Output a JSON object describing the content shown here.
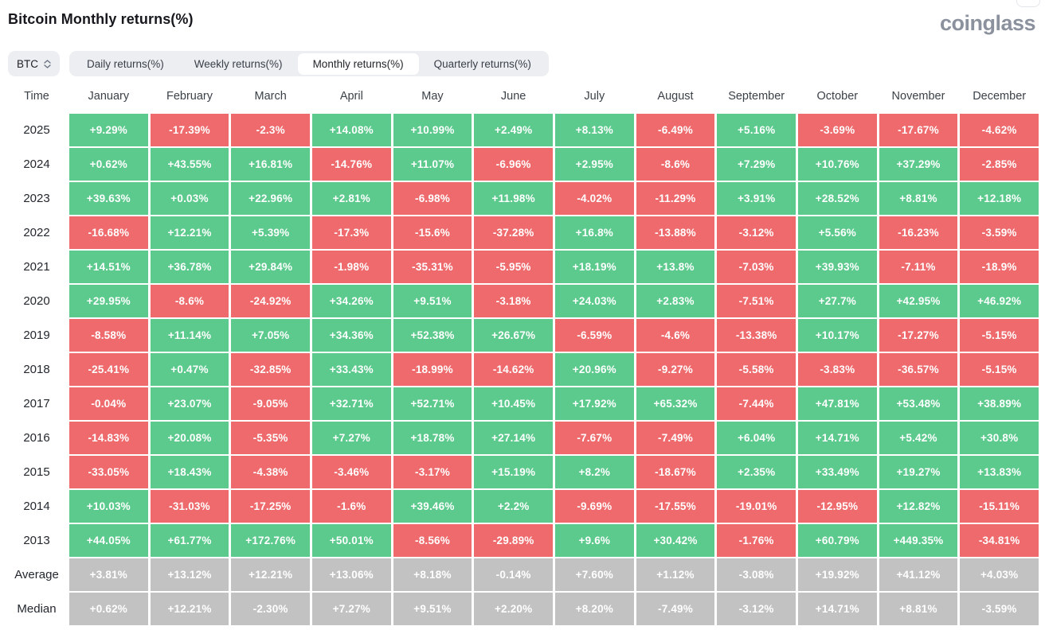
{
  "header": {
    "title": "Bitcoin Monthly returns(%)",
    "logo": "coinglass"
  },
  "toolbar": {
    "symbol": "BTC",
    "tabs": [
      {
        "label": "Daily returns(%)",
        "active": false
      },
      {
        "label": "Weekly returns(%)",
        "active": false
      },
      {
        "label": "Monthly returns(%)",
        "active": true
      },
      {
        "label": "Quarterly returns(%)",
        "active": false
      }
    ]
  },
  "colors": {
    "positive": "#5bca8c",
    "negative": "#ef6a6c",
    "neutral": "#c2c2c2"
  },
  "chart_data": {
    "type": "heatmap",
    "title": "Bitcoin Monthly returns(%)",
    "columns": [
      "Time",
      "January",
      "February",
      "March",
      "April",
      "May",
      "June",
      "July",
      "August",
      "September",
      "October",
      "November",
      "December"
    ],
    "rows": [
      {
        "label": "2025",
        "kind": "year",
        "values": [
          "+9.29%",
          "-17.39%",
          "-2.3%",
          "+14.08%",
          "+10.99%",
          "+2.49%",
          "+8.13%",
          "-6.49%",
          "+5.16%",
          "-3.69%",
          "-17.67%",
          "-4.62%"
        ]
      },
      {
        "label": "2024",
        "kind": "year",
        "values": [
          "+0.62%",
          "+43.55%",
          "+16.81%",
          "-14.76%",
          "+11.07%",
          "-6.96%",
          "+2.95%",
          "-8.6%",
          "+7.29%",
          "+10.76%",
          "+37.29%",
          "-2.85%"
        ]
      },
      {
        "label": "2023",
        "kind": "year",
        "values": [
          "+39.63%",
          "+0.03%",
          "+22.96%",
          "+2.81%",
          "-6.98%",
          "+11.98%",
          "-4.02%",
          "-11.29%",
          "+3.91%",
          "+28.52%",
          "+8.81%",
          "+12.18%"
        ]
      },
      {
        "label": "2022",
        "kind": "year",
        "values": [
          "-16.68%",
          "+12.21%",
          "+5.39%",
          "-17.3%",
          "-15.6%",
          "-37.28%",
          "+16.8%",
          "-13.88%",
          "-3.12%",
          "+5.56%",
          "-16.23%",
          "-3.59%"
        ]
      },
      {
        "label": "2021",
        "kind": "year",
        "values": [
          "+14.51%",
          "+36.78%",
          "+29.84%",
          "-1.98%",
          "-35.31%",
          "-5.95%",
          "+18.19%",
          "+13.8%",
          "-7.03%",
          "+39.93%",
          "-7.11%",
          "-18.9%"
        ]
      },
      {
        "label": "2020",
        "kind": "year",
        "values": [
          "+29.95%",
          "-8.6%",
          "-24.92%",
          "+34.26%",
          "+9.51%",
          "-3.18%",
          "+24.03%",
          "+2.83%",
          "-7.51%",
          "+27.7%",
          "+42.95%",
          "+46.92%"
        ]
      },
      {
        "label": "2019",
        "kind": "year",
        "values": [
          "-8.58%",
          "+11.14%",
          "+7.05%",
          "+34.36%",
          "+52.38%",
          "+26.67%",
          "-6.59%",
          "-4.6%",
          "-13.38%",
          "+10.17%",
          "-17.27%",
          "-5.15%"
        ]
      },
      {
        "label": "2018",
        "kind": "year",
        "values": [
          "-25.41%",
          "+0.47%",
          "-32.85%",
          "+33.43%",
          "-18.99%",
          "-14.62%",
          "+20.96%",
          "-9.27%",
          "-5.58%",
          "-3.83%",
          "-36.57%",
          "-5.15%"
        ]
      },
      {
        "label": "2017",
        "kind": "year",
        "values": [
          "-0.04%",
          "+23.07%",
          "-9.05%",
          "+32.71%",
          "+52.71%",
          "+10.45%",
          "+17.92%",
          "+65.32%",
          "-7.44%",
          "+47.81%",
          "+53.48%",
          "+38.89%"
        ]
      },
      {
        "label": "2016",
        "kind": "year",
        "values": [
          "-14.83%",
          "+20.08%",
          "-5.35%",
          "+7.27%",
          "+18.78%",
          "+27.14%",
          "-7.67%",
          "-7.49%",
          "+6.04%",
          "+14.71%",
          "+5.42%",
          "+30.8%"
        ]
      },
      {
        "label": "2015",
        "kind": "year",
        "values": [
          "-33.05%",
          "+18.43%",
          "-4.38%",
          "-3.46%",
          "-3.17%",
          "+15.19%",
          "+8.2%",
          "-18.67%",
          "+2.35%",
          "+33.49%",
          "+19.27%",
          "+13.83%"
        ]
      },
      {
        "label": "2014",
        "kind": "year",
        "values": [
          "+10.03%",
          "-31.03%",
          "-17.25%",
          "-1.6%",
          "+39.46%",
          "+2.2%",
          "-9.69%",
          "-17.55%",
          "-19.01%",
          "-12.95%",
          "+12.82%",
          "-15.11%"
        ]
      },
      {
        "label": "2013",
        "kind": "year",
        "values": [
          "+44.05%",
          "+61.77%",
          "+172.76%",
          "+50.01%",
          "-8.56%",
          "-29.89%",
          "+9.6%",
          "+30.42%",
          "-1.76%",
          "+60.79%",
          "+449.35%",
          "-34.81%"
        ]
      },
      {
        "label": "Average",
        "kind": "summary",
        "values": [
          "+3.81%",
          "+13.12%",
          "+12.21%",
          "+13.06%",
          "+8.18%",
          "-0.14%",
          "+7.60%",
          "+1.12%",
          "-3.08%",
          "+19.92%",
          "+41.12%",
          "+4.03%"
        ]
      },
      {
        "label": "Median",
        "kind": "summary",
        "values": [
          "+0.62%",
          "+12.21%",
          "-2.30%",
          "+7.27%",
          "+9.51%",
          "+2.20%",
          "+8.20%",
          "-7.49%",
          "-3.12%",
          "+14.71%",
          "+8.81%",
          "-3.59%"
        ]
      }
    ]
  }
}
